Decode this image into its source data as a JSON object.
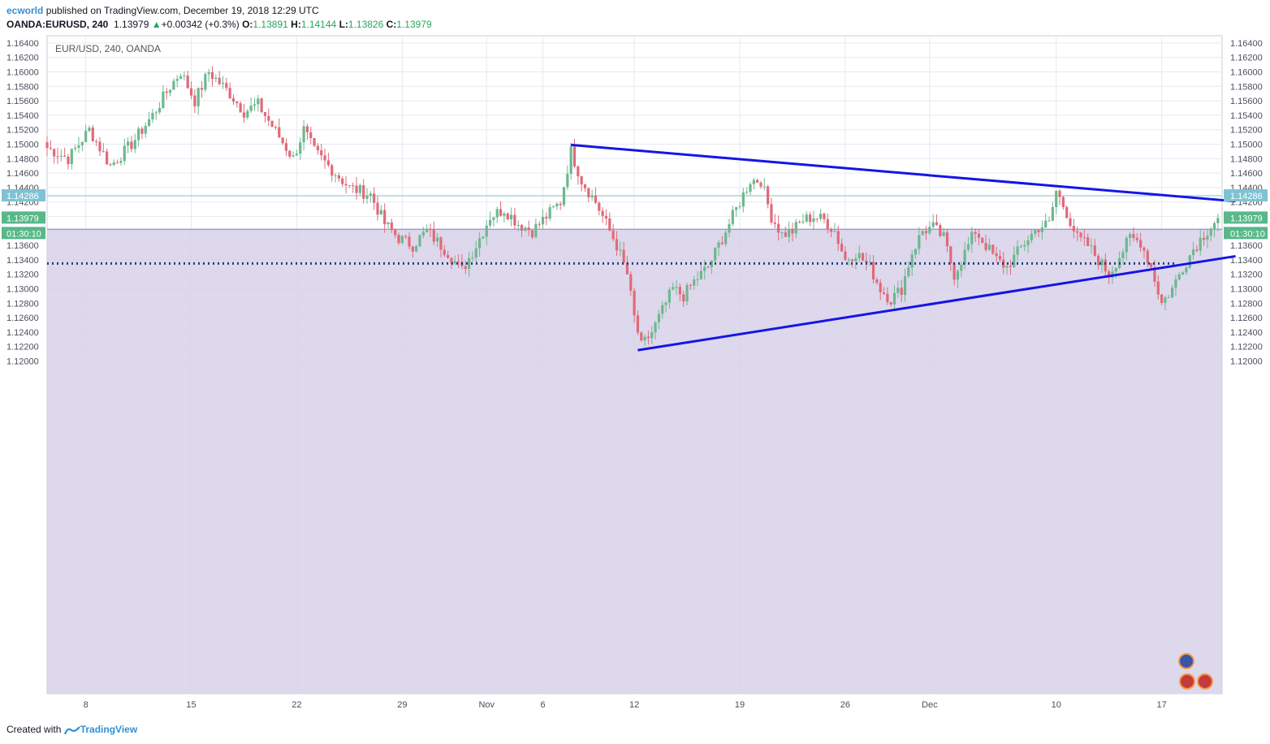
{
  "header": {
    "author": "ecworld",
    "published_text": "published on TradingView.com, December 19, 2018 12:29 UTC",
    "symbol": "OANDA:EURUSD, 240",
    "last": "1.13979",
    "change_arrow": "▲",
    "change": "+0.00342 (+0.3%)",
    "o_label": "O:",
    "o_value": "1.13891",
    "h_label": "H:",
    "h_value": "1.14144",
    "l_label": "L:",
    "l_value": "1.13826",
    "c_label": "C:",
    "c_value": "1.13979"
  },
  "footer": {
    "created_text": "Created with",
    "brand": "TradingView"
  },
  "colors": {
    "up": "#6cb88e",
    "down": "#e06a79",
    "trendline": "#1515e6",
    "dotted": "#1f3f7a",
    "zone_fill": "#d8d1e9",
    "zone_line": "#9a8ccb",
    "grid": "#e6e9f0",
    "cursor_line": "#7fc3d3"
  },
  "chart_data": {
    "type": "candlestick",
    "title": "EUR/USD, 240, OANDA",
    "ylim": [
      1.119,
      1.165
    ],
    "yticks": [
      "1.16400",
      "1.16200",
      "1.16000",
      "1.15800",
      "1.15600",
      "1.15400",
      "1.15200",
      "1.15000",
      "1.14800",
      "1.14600",
      "1.14400",
      "1.14200",
      "1.14000",
      "1.13800",
      "1.13600",
      "1.13400",
      "1.13200",
      "1.13000",
      "1.12800",
      "1.12600",
      "1.12400",
      "1.12200",
      "1.12000"
    ],
    "xticks": [
      {
        "label": "8",
        "bar": 11
      },
      {
        "label": "15",
        "bar": 41
      },
      {
        "label": "22",
        "bar": 71
      },
      {
        "label": "29",
        "bar": 101
      },
      {
        "label": "Nov",
        "bar": 125
      },
      {
        "label": "6",
        "bar": 141
      },
      {
        "label": "12",
        "bar": 167
      },
      {
        "label": "19",
        "bar": 197
      },
      {
        "label": "26",
        "bar": 227
      },
      {
        "label": "Dec",
        "bar": 251
      },
      {
        "label": "10",
        "bar": 287
      },
      {
        "label": "17",
        "bar": 317
      }
    ],
    "price_labels": [
      {
        "value": 1.14286,
        "text": "1.14286",
        "kind": "cursor"
      },
      {
        "value": 1.13979,
        "text": "1.13979",
        "kind": "last"
      },
      {
        "text": "01:30:10",
        "kind": "countdown"
      }
    ],
    "horizontal_level": 1.1335,
    "support_zone": {
      "top": 1.13823,
      "bottom": 1.119
    },
    "trendlines": [
      {
        "name": "upper",
        "from": {
          "bar": 149,
          "price": 1.1499
        },
        "to": {
          "bar": 338,
          "price": 1.1421
        }
      },
      {
        "name": "lower",
        "from": {
          "bar": 168,
          "price": 1.1215
        },
        "to": {
          "bar": 338,
          "price": 1.1345
        }
      }
    ],
    "anchor_closes": [
      [
        0,
        1.1495
      ],
      [
        6,
        1.148
      ],
      [
        12,
        1.152
      ],
      [
        18,
        1.147
      ],
      [
        24,
        1.15
      ],
      [
        30,
        1.154
      ],
      [
        35,
        1.158
      ],
      [
        38,
        1.16
      ],
      [
        42,
        1.156
      ],
      [
        46,
        1.16
      ],
      [
        52,
        1.157
      ],
      [
        56,
        1.1545
      ],
      [
        60,
        1.1555
      ],
      [
        64,
        1.1525
      ],
      [
        70,
        1.148
      ],
      [
        73,
        1.152
      ],
      [
        76,
        1.149
      ],
      [
        80,
        1.147
      ],
      [
        86,
        1.144
      ],
      [
        92,
        1.143
      ],
      [
        96,
        1.139
      ],
      [
        100,
        1.137
      ],
      [
        104,
        1.136
      ],
      [
        108,
        1.138
      ],
      [
        114,
        1.135
      ],
      [
        118,
        1.1325
      ],
      [
        122,
        1.136
      ],
      [
        126,
        1.14
      ],
      [
        130,
        1.141
      ],
      [
        134,
        1.139
      ],
      [
        138,
        1.138
      ],
      [
        142,
        1.14
      ],
      [
        146,
        1.142
      ],
      [
        149,
        1.149
      ],
      [
        152,
        1.145
      ],
      [
        156,
        1.142
      ],
      [
        159,
        1.139
      ],
      [
        162,
        1.136
      ],
      [
        165,
        1.132
      ],
      [
        167,
        1.126
      ],
      [
        169,
        1.122
      ],
      [
        172,
        1.124
      ],
      [
        175,
        1.127
      ],
      [
        178,
        1.13
      ],
      [
        181,
        1.129
      ],
      [
        184,
        1.131
      ],
      [
        188,
        1.133
      ],
      [
        192,
        1.137
      ],
      [
        196,
        1.141
      ],
      [
        200,
        1.145
      ],
      [
        203,
        1.145
      ],
      [
        206,
        1.14
      ],
      [
        209,
        1.1375
      ],
      [
        212,
        1.138
      ],
      [
        215,
        1.1395
      ],
      [
        218,
        1.14
      ],
      [
        221,
        1.1395
      ],
      [
        224,
        1.138
      ],
      [
        227,
        1.134
      ],
      [
        230,
        1.135
      ],
      [
        234,
        1.133
      ],
      [
        237,
        1.13
      ],
      [
        240,
        1.1285
      ],
      [
        243,
        1.13
      ],
      [
        246,
        1.135
      ],
      [
        249,
        1.138
      ],
      [
        252,
        1.1385
      ],
      [
        255,
        1.137
      ],
      [
        258,
        1.132
      ],
      [
        261,
        1.135
      ],
      [
        264,
        1.138
      ],
      [
        267,
        1.136
      ],
      [
        270,
        1.134
      ],
      [
        273,
        1.133
      ],
      [
        276,
        1.135
      ],
      [
        279,
        1.137
      ],
      [
        282,
        1.1385
      ],
      [
        285,
        1.139
      ],
      [
        287,
        1.1435
      ],
      [
        290,
        1.1405
      ],
      [
        293,
        1.137
      ],
      [
        296,
        1.136
      ],
      [
        299,
        1.134
      ],
      [
        302,
        1.132
      ],
      [
        305,
        1.1345
      ],
      [
        308,
        1.137
      ],
      [
        311,
        1.1365
      ],
      [
        314,
        1.133
      ],
      [
        317,
        1.128
      ],
      [
        320,
        1.13
      ],
      [
        323,
        1.133
      ],
      [
        326,
        1.1355
      ],
      [
        329,
        1.1375
      ],
      [
        332,
        1.1392
      ],
      [
        333,
        1.13979
      ]
    ]
  }
}
